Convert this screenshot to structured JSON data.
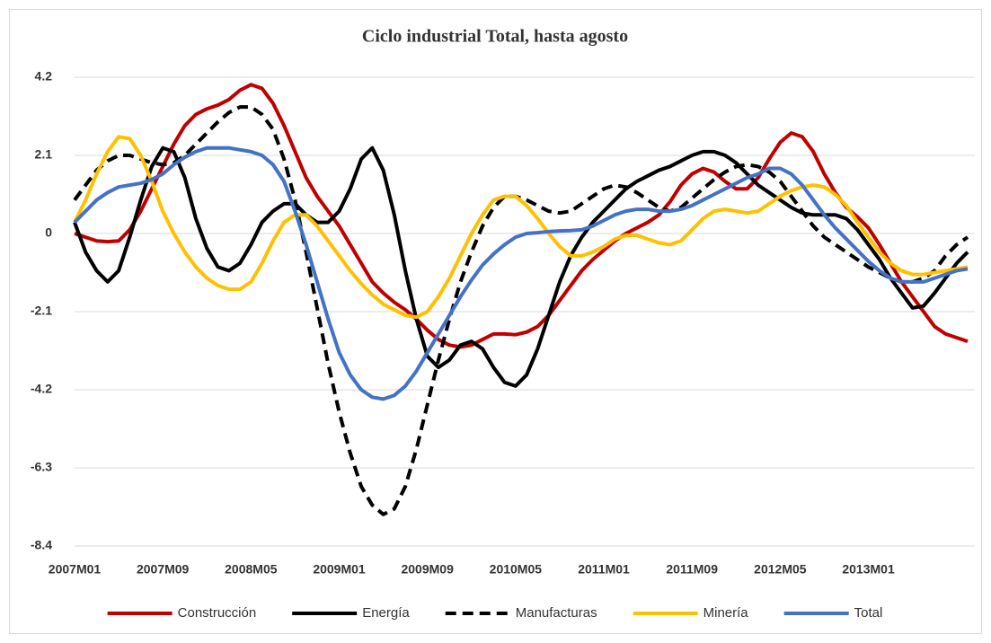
{
  "chart_data": {
    "type": "line",
    "title": "Ciclo industrial Total, hasta agosto",
    "categories": [
      "2007M01",
      null,
      null,
      null,
      null,
      null,
      null,
      null,
      "2007M09",
      null,
      null,
      null,
      null,
      null,
      null,
      null,
      "2008M05",
      null,
      null,
      null,
      null,
      null,
      null,
      null,
      "2009M01",
      null,
      null,
      null,
      null,
      null,
      null,
      null,
      "2009M09",
      null,
      null,
      null,
      null,
      null,
      null,
      null,
      "2010M05",
      null,
      null,
      null,
      null,
      null,
      null,
      null,
      "2011M01",
      null,
      null,
      null,
      null,
      null,
      null,
      null,
      "2011M09",
      null,
      null,
      null,
      null,
      null,
      null,
      null,
      "2012M05",
      null,
      null,
      null,
      null,
      null,
      null,
      null,
      "2013M01",
      null,
      null,
      null,
      null,
      null,
      null,
      null,
      null,
      null
    ],
    "series": [
      {
        "name": "Construcción",
        "color": "#c00000",
        "style": "solid",
        "values": [
          0,
          -0.1,
          -0.2,
          -0.22,
          -0.2,
          0.1,
          0.6,
          1.2,
          1.8,
          2.4,
          2.9,
          3.2,
          3.35,
          3.45,
          3.6,
          3.85,
          4.0,
          3.9,
          3.5,
          2.9,
          2.2,
          1.5,
          1.0,
          0.6,
          0.2,
          -0.3,
          -0.8,
          -1.3,
          -1.6,
          -1.85,
          -2.05,
          -2.3,
          -2.6,
          -2.85,
          -3.0,
          -3.05,
          -3.0,
          -2.85,
          -2.7,
          -2.7,
          -2.72,
          -2.65,
          -2.5,
          -2.2,
          -1.8,
          -1.4,
          -1.0,
          -0.7,
          -0.45,
          -0.2,
          0.0,
          0.15,
          0.3,
          0.5,
          0.85,
          1.3,
          1.6,
          1.75,
          1.65,
          1.4,
          1.2,
          1.2,
          1.5,
          2.0,
          2.45,
          2.7,
          2.6,
          2.2,
          1.6,
          1.1,
          0.7,
          0.45,
          0.15,
          -0.3,
          -0.8,
          -1.3,
          -1.7,
          -2.1,
          -2.5,
          -2.7,
          -2.8,
          -2.9
        ]
      },
      {
        "name": "Energía",
        "color": "#000000",
        "style": "solid",
        "values": [
          0.3,
          -0.5,
          -1.0,
          -1.3,
          -1.0,
          -0.1,
          0.9,
          1.8,
          2.3,
          2.2,
          1.5,
          0.4,
          -0.4,
          -0.9,
          -1.0,
          -0.8,
          -0.3,
          0.3,
          0.6,
          0.8,
          0.8,
          0.5,
          0.3,
          0.3,
          0.6,
          1.2,
          2.0,
          2.3,
          1.7,
          0.5,
          -1.0,
          -2.3,
          -3.3,
          -3.6,
          -3.4,
          -3.0,
          -2.9,
          -3.1,
          -3.6,
          -4.0,
          -4.1,
          -3.8,
          -3.1,
          -2.2,
          -1.3,
          -0.6,
          -0.1,
          0.3,
          0.6,
          0.9,
          1.2,
          1.4,
          1.55,
          1.7,
          1.8,
          1.95,
          2.1,
          2.2,
          2.2,
          2.1,
          1.9,
          1.6,
          1.3,
          1.1,
          0.9,
          0.7,
          0.55,
          0.5,
          0.5,
          0.5,
          0.4,
          0.1,
          -0.3,
          -0.7,
          -1.2,
          -1.6,
          -2.0,
          -1.95,
          -1.6,
          -1.2,
          -0.8,
          -0.5
        ]
      },
      {
        "name": "Manufacturas",
        "color": "#000000",
        "style": "dashed",
        "values": [
          0.9,
          1.3,
          1.7,
          1.95,
          2.1,
          2.1,
          2.0,
          1.9,
          1.85,
          1.9,
          2.1,
          2.4,
          2.7,
          3.0,
          3.25,
          3.4,
          3.4,
          3.2,
          2.8,
          2.0,
          0.9,
          -0.5,
          -2.0,
          -3.5,
          -4.8,
          -5.9,
          -6.8,
          -7.3,
          -7.55,
          -7.4,
          -6.8,
          -5.8,
          -4.6,
          -3.4,
          -2.3,
          -1.3,
          -0.5,
          0.2,
          0.7,
          1.0,
          1.0,
          0.9,
          0.75,
          0.6,
          0.55,
          0.6,
          0.8,
          1.0,
          1.2,
          1.3,
          1.25,
          1.1,
          0.9,
          0.7,
          0.6,
          0.7,
          0.95,
          1.2,
          1.45,
          1.65,
          1.8,
          1.85,
          1.8,
          1.65,
          1.4,
          1.0,
          0.6,
          0.2,
          -0.1,
          -0.3,
          -0.5,
          -0.7,
          -0.9,
          -1.05,
          -1.2,
          -1.3,
          -1.3,
          -1.2,
          -1.0,
          -0.6,
          -0.3,
          -0.1
        ]
      },
      {
        "name": "Minería",
        "color": "#ffc000",
        "style": "solid",
        "values": [
          0.3,
          0.9,
          1.6,
          2.2,
          2.6,
          2.55,
          2.1,
          1.4,
          0.6,
          0.0,
          -0.5,
          -0.9,
          -1.2,
          -1.4,
          -1.5,
          -1.5,
          -1.3,
          -0.8,
          -0.2,
          0.3,
          0.5,
          0.5,
          0.2,
          -0.2,
          -0.6,
          -1.0,
          -1.35,
          -1.65,
          -1.9,
          -2.05,
          -2.2,
          -2.25,
          -2.1,
          -1.7,
          -1.2,
          -0.6,
          0.0,
          0.5,
          0.9,
          1.0,
          1.0,
          0.75,
          0.4,
          0.0,
          -0.35,
          -0.6,
          -0.6,
          -0.5,
          -0.35,
          -0.15,
          -0.05,
          -0.05,
          -0.15,
          -0.25,
          -0.3,
          -0.2,
          0.1,
          0.4,
          0.6,
          0.65,
          0.6,
          0.55,
          0.6,
          0.8,
          1.0,
          1.15,
          1.25,
          1.3,
          1.25,
          1.05,
          0.75,
          0.3,
          -0.1,
          -0.5,
          -0.8,
          -1.0,
          -1.1,
          -1.1,
          -1.05,
          -1.0,
          -0.95,
          -0.9
        ]
      },
      {
        "name": "Total",
        "color": "#4472c4",
        "style": "solid",
        "values": [
          0.3,
          0.6,
          0.9,
          1.1,
          1.25,
          1.3,
          1.35,
          1.45,
          1.6,
          1.85,
          2.05,
          2.2,
          2.3,
          2.3,
          2.3,
          2.25,
          2.2,
          2.1,
          1.85,
          1.4,
          0.6,
          -0.3,
          -1.3,
          -2.3,
          -3.2,
          -3.8,
          -4.2,
          -4.4,
          -4.45,
          -4.35,
          -4.1,
          -3.7,
          -3.2,
          -2.7,
          -2.2,
          -1.7,
          -1.25,
          -0.85,
          -0.55,
          -0.3,
          -0.1,
          0.0,
          0.02,
          0.05,
          0.07,
          0.08,
          0.1,
          0.2,
          0.35,
          0.5,
          0.6,
          0.65,
          0.65,
          0.6,
          0.6,
          0.65,
          0.75,
          0.9,
          1.05,
          1.2,
          1.35,
          1.5,
          1.6,
          1.75,
          1.75,
          1.6,
          1.3,
          0.9,
          0.5,
          0.15,
          -0.15,
          -0.45,
          -0.75,
          -1.0,
          -1.2,
          -1.3,
          -1.3,
          -1.3,
          -1.2,
          -1.1,
          -1.0,
          -0.95
        ]
      }
    ],
    "ylim": [
      -8.4,
      4.2
    ],
    "yticks": [
      -8.4,
      -6.3,
      -4.2,
      -2.1,
      0,
      2.1,
      4.2
    ],
    "grid": true,
    "legend": "bottom"
  }
}
